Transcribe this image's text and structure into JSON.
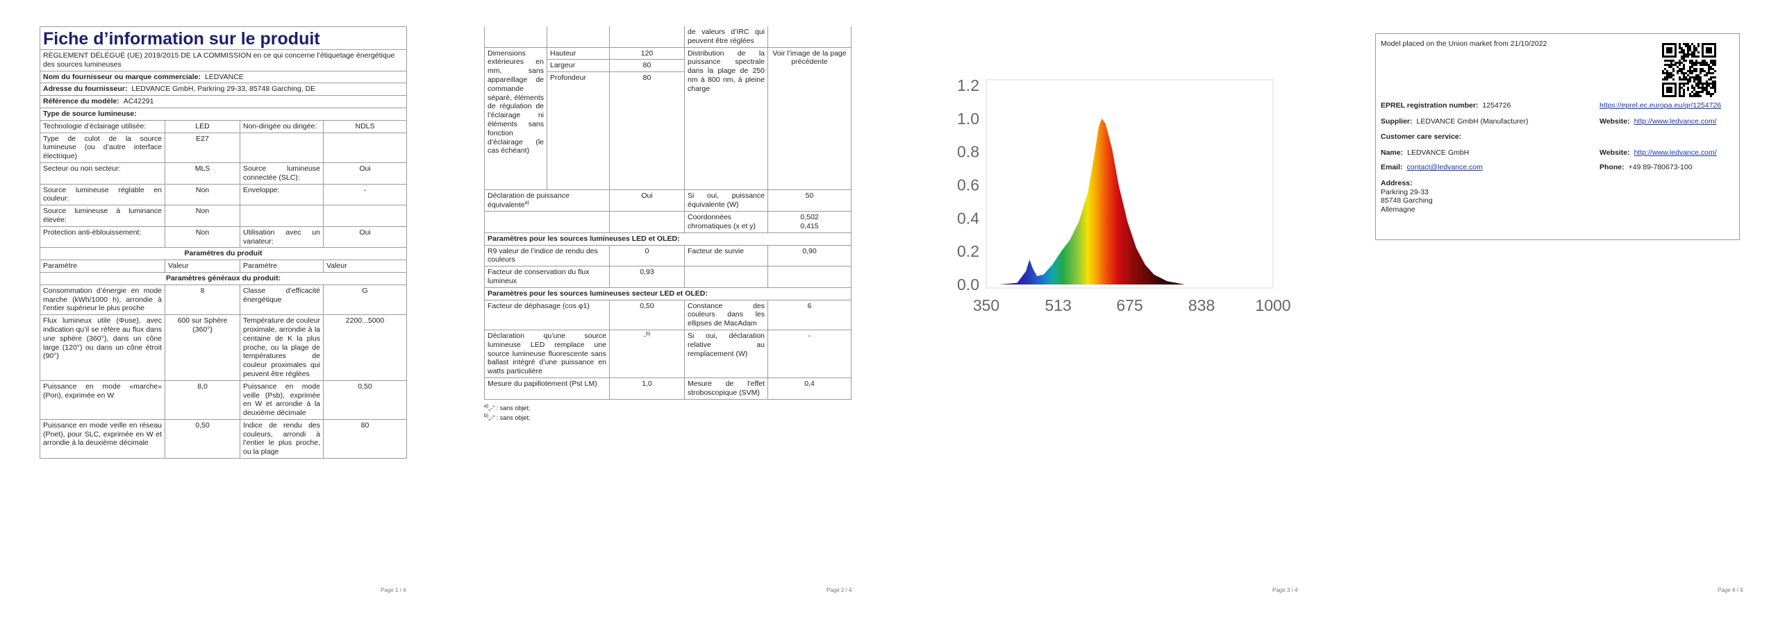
{
  "page1": {
    "title": "Fiche d’information sur le produit",
    "regulation": "RÈGLEMENT DÉLÉGUÉ (UE) 2019/2015 DE LA COMMISSION en ce qui concerne l’étiquetage énergétique des sources lumineuses",
    "fields": [
      {
        "label": "Nom du fournisseur ou marque commerciale:",
        "value": "LEDVANCE"
      },
      {
        "label": "Adresse du fournisseur:",
        "value": "LEDVANCE GmbH, Parkring 29-33, 85748 Garching, DE"
      },
      {
        "label": "Référence du modèle:",
        "value": "AC42291"
      }
    ],
    "source_type_heading": "Type de source lumineuse:",
    "source_rows": [
      [
        "Technologie d’éclairage utilisée:",
        "LED",
        "Non-dirigée ou dirigée:",
        "NDLS"
      ],
      [
        "Type de culot de la source lumineuse (ou d’autre interface électrique)",
        "E27"
      ],
      [
        "Secteur ou non secteur:",
        "MLS",
        "Source lumineuse connectée (SLC):",
        "Oui"
      ],
      [
        "Source lumineuse réglable en couleur:",
        "Non",
        "Enveloppe:",
        "-"
      ],
      [
        "Source lumineuse à luminance élevée:",
        "Non"
      ],
      [
        "Protection anti-éblouissement:",
        "Non",
        "Utilisation avec un variateur:",
        "Oui"
      ]
    ],
    "product_params_heading": "Paramètres du produit",
    "column_headers": [
      "Paramètre",
      "Valeur",
      "Paramètre",
      "Valeur"
    ],
    "general_heading": "Paramètres généraux du produit:",
    "general_rows": [
      [
        "Consommation d’énergie en mode marche (kWh/1000 h), arrondie à l’entier supérieur le plus proche",
        "8",
        "Classe d’efficacité énergétique",
        "G"
      ],
      [
        "Flux lumineux utile (Φuse), avec indication qu’il se réfère au flux dans une sphère (360°), dans un cône large (120°) ou dans un cône étroit (90°)",
        "600 sur Sphère (360°)",
        "Température de couleur proximale, arrondie à la centaine de K la plus proche, ou la plage de températures de couleur proximales qui peuvent être réglées",
        "2200...5000"
      ],
      [
        "Puissance en mode «marche» (Pon), exprimée en W",
        "8,0",
        "Puissance en mode veille (Psb), exprimée en W et arrondie à la deuxième décimale",
        "0,50"
      ],
      [
        "Puissance en mode veille en réseau (Pnet), pour SLC, exprimée en W et arrondie à la deuxième décimale",
        "0,50",
        "Indice de rendu des couleurs, arrondi à l’entier le plus proche, ou la plage",
        "80"
      ]
    ],
    "footer": "Page 1 / 4"
  },
  "page2": {
    "continuation": "de valeurs d’IRC qui peuvent être réglées",
    "dimensions": {
      "label": "Dimensions extérieures en mm, sans appareillage de commande séparé, éléments de régulation de l’éclairage ni éléments sans fonction d’éclairage (le cas échéant)",
      "items": [
        {
          "label": "Hauteur",
          "value": "120"
        },
        {
          "label": "Largeur",
          "value": "80"
        },
        {
          "label": "Profondeur",
          "value": "80"
        }
      ],
      "spd_label": "Distribution de la puissance spectrale dans la plage de 250 nm à 800 nm, à pleine charge",
      "spd_value": "Voir l’image de la page précédente"
    },
    "equivalent": {
      "label": "Déclaration de puissance équivalente",
      "note": "a)",
      "value": "Oui",
      "param": "Si oui, puissance équivalente (W)",
      "param_value": "50"
    },
    "chromaticity": {
      "label": "Coordonnées chromatiques (x et y)",
      "values": [
        "0,502",
        "0,415"
      ]
    },
    "led_heading": "Paramètres pour les sources lumineuses LED et OLED:",
    "led_rows": [
      [
        "R9 valeur de l’indice de rendu des couleurs",
        "0",
        "Facteur de survie",
        "0,90"
      ],
      [
        "Facteur de conservation du flux lumineux",
        "0,93"
      ]
    ],
    "mains_heading": "Paramètres pour les sources lumineuses secteur LED et OLED:",
    "mains_rows": [
      [
        "Facteur de déphasage (cos φ1)",
        "0,50",
        "Constance des couleurs dans les ellipses de MacAdam",
        "6"
      ],
      [
        "Déclaration qu’une source lumineuse LED remplace une source lumineuse fluorescente sans ballast intégré d’une puissance en watts particulière",
        "-",
        "Si oui, déclaration relative au remplacement (W)",
        "-"
      ],
      [
        "Mesure du papillotement (Pst LM)",
        "1,0",
        "Mesure de l’effet stroboscopique (SVM)",
        "0,4"
      ]
    ],
    "mains_note": "b)",
    "footnotes": [
      {
        "mark": "a)",
        "text": "„-“ : sans objet;"
      },
      {
        "mark": "b)",
        "text": "„-“ : sans objet;"
      }
    ],
    "footer": "Page 2 / 4"
  },
  "chart_data": {
    "type": "area",
    "x": [
      380,
      420,
      440,
      448,
      455,
      465,
      480,
      500,
      520,
      540,
      560,
      580,
      595,
      605,
      612,
      620,
      635,
      650,
      670,
      690,
      710,
      730,
      760,
      800
    ],
    "values": [
      0,
      0.01,
      0.08,
      0.15,
      0.1,
      0.05,
      0.06,
      0.12,
      0.2,
      0.27,
      0.38,
      0.55,
      0.78,
      0.95,
      1.0,
      0.97,
      0.82,
      0.6,
      0.38,
      0.22,
      0.12,
      0.06,
      0.02,
      0
    ],
    "xlim": [
      350,
      1000
    ],
    "ylim": [
      0,
      1.2
    ],
    "xticks": [
      350,
      513,
      675,
      838,
      1000
    ],
    "yticks": [
      {
        "value": 0,
        "label": "0.0"
      },
      0.2,
      0.4,
      0.6,
      0.8,
      {
        "value": 1,
        "label": "1.0"
      },
      1.2
    ],
    "grid": false,
    "color": "spectral"
  },
  "page3": {
    "footer": "Page 3 / 4"
  },
  "page4": {
    "placed": "Model placed on the Union market from 21/10/2022",
    "eprel": {
      "label": "EPREL registration number:",
      "value": "1254726",
      "link": "https://eprel.ec.europa.eu/qr/1254726"
    },
    "supplier": {
      "label": "Supplier:",
      "value": "LEDVANCE GmbH (Manufacturer)",
      "website_label": "Website:",
      "website": "http://www.ledvance.com/"
    },
    "customer_care": "Customer care service:",
    "name": {
      "label": "Name:",
      "value": "LEDVANCE GmbH",
      "website_label": "Website:",
      "website": "http://www.ledvance.com/"
    },
    "email": {
      "label": "Email:",
      "value": "contact@ledvance.com",
      "phone_label": "Phone:",
      "phone": "+49 89-780673-100"
    },
    "address": {
      "label": "Address:",
      "lines": [
        "Parkring 29-33",
        "85748 Garching",
        "Allemagne"
      ]
    },
    "footer": "Page 4 / 4"
  }
}
